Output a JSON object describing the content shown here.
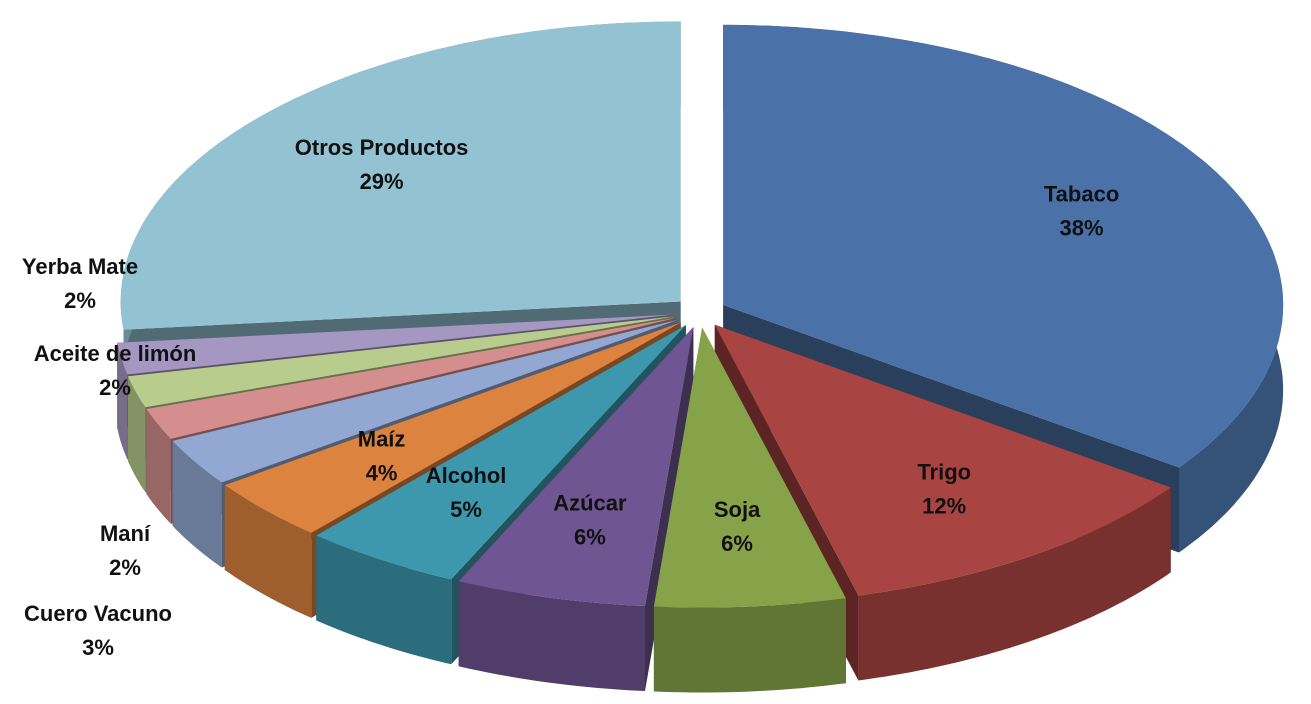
{
  "chart_data": {
    "type": "pie3d",
    "categories": [
      "Tabaco",
      "Trigo",
      "Soja",
      "Azúcar",
      "Alcohol",
      "Maíz",
      "Cuero Vacuno",
      "Maní",
      "Aceite de limón",
      "Yerba Mate",
      "Otros Productos"
    ],
    "values": [
      38,
      12,
      6,
      6,
      5,
      4,
      3,
      2,
      2,
      2,
      29
    ],
    "value_labels": [
      "38%",
      "12%",
      "6%",
      "6%",
      "5%",
      "4%",
      "3%",
      "2%",
      "2%",
      "2%",
      "29%"
    ],
    "colors": [
      "#4a72a8",
      "#a84442",
      "#87a34a",
      "#6f5592",
      "#3d98ae",
      "#dc8340",
      "#92a8d3",
      "#d48e8d",
      "#b8cc8e",
      "#a497c1",
      "#93c2d3"
    ]
  }
}
